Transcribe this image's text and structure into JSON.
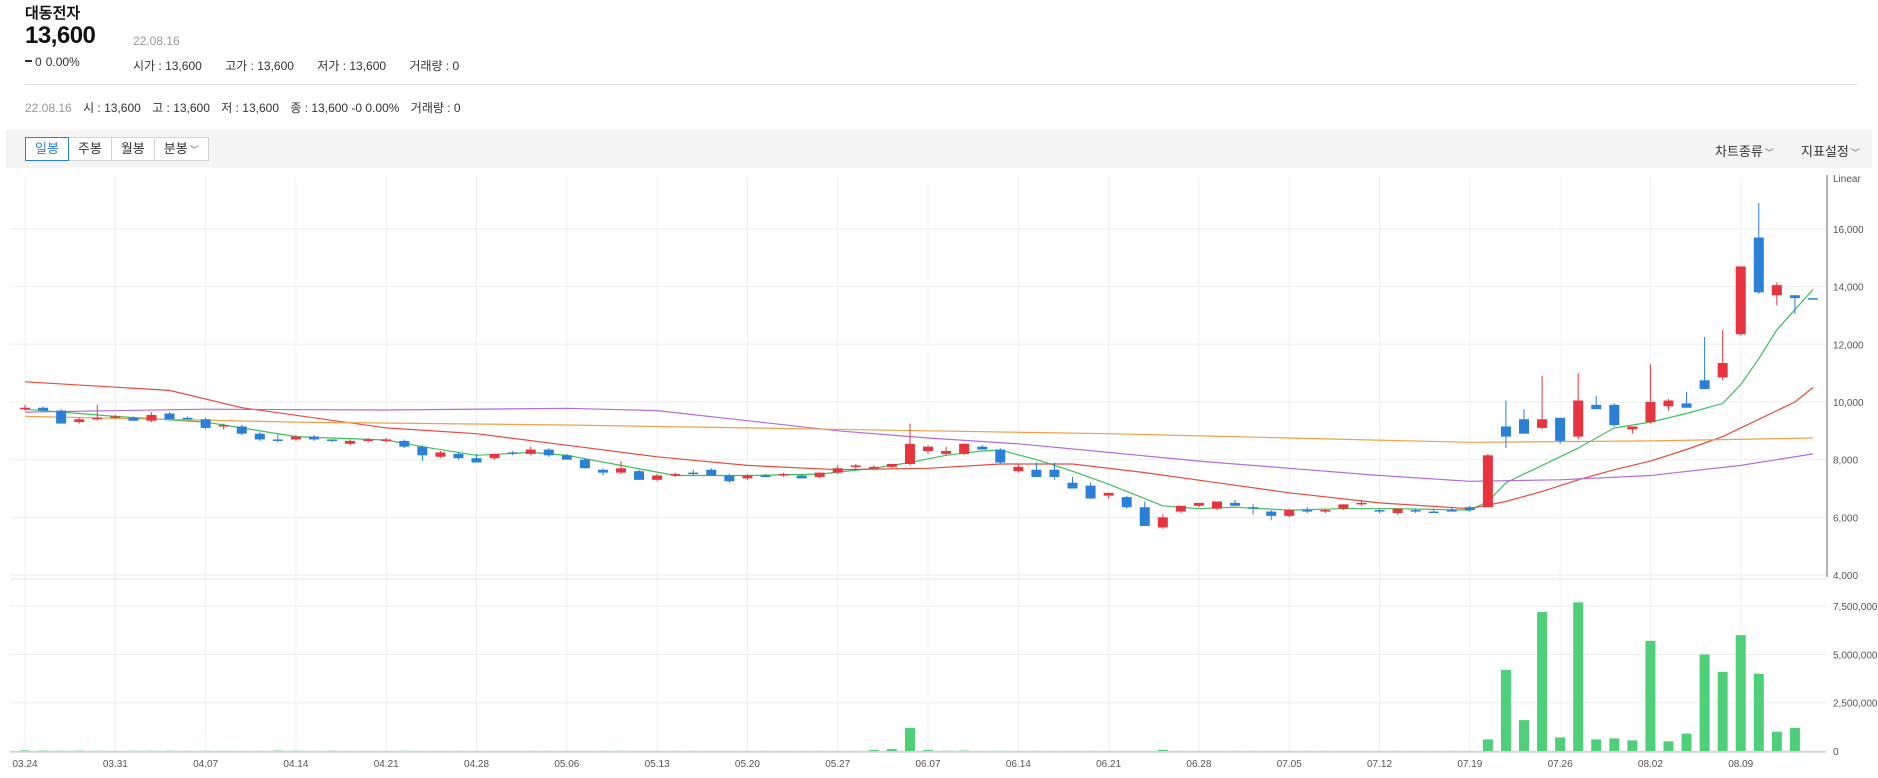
{
  "stock": {
    "name": "대동전자",
    "price": "13,600",
    "change": "0",
    "change_pct": "0.00%",
    "date": "22.08.16",
    "open": "시가 : 13,600",
    "high": "고가 : 13,600",
    "low": "저가 : 13,600",
    "volume": "거래량 : 0"
  },
  "info_bar": {
    "date": "22.08.16",
    "open": "시 : 13,600",
    "high": "고 : 13,600",
    "low": "저 : 13,600",
    "close": "종 : 13,600 -0 0.00%",
    "volume": "거래량 : 0"
  },
  "toolbar": {
    "tabs": [
      "일봉",
      "주봉",
      "월봉",
      "분봉"
    ],
    "active_tab": 0,
    "chart_type": "차트종류",
    "indicator": "지표설정"
  },
  "colors": {
    "up": "#e8343f",
    "down": "#2a7fd6",
    "volume": "#4fcf7a",
    "ma5": "#3dbf5a",
    "ma20": "#e84b3c",
    "ma60": "#b56ae0",
    "ma120": "#f0a04b"
  },
  "chart_data": {
    "type": "candlestick",
    "scale_label": "Linear",
    "price_axis": {
      "ticks": [
        "16,000",
        "14,000",
        "12,000",
        "10,000",
        "8,000",
        "6,000",
        "4,000"
      ],
      "values": [
        16000,
        14000,
        12000,
        10000,
        8000,
        6000,
        4000
      ],
      "range": [
        4000,
        17800
      ]
    },
    "volume_axis": {
      "ticks": [
        "7,500,000",
        "5,000,000",
        "2,500,000",
        "0"
      ],
      "values": [
        7500000,
        5000000,
        2500000,
        0
      ],
      "range": [
        0,
        8700000
      ]
    },
    "x_ticks": [
      {
        "label": "03.24",
        "i": 0
      },
      {
        "label": "03.31",
        "i": 5
      },
      {
        "label": "04.07",
        "i": 10
      },
      {
        "label": "04.14",
        "i": 15
      },
      {
        "label": "04.21",
        "i": 20
      },
      {
        "label": "04.28",
        "i": 25
      },
      {
        "label": "05.06",
        "i": 30
      },
      {
        "label": "05.13",
        "i": 35
      },
      {
        "label": "05.20",
        "i": 40
      },
      {
        "label": "05.27",
        "i": 45
      },
      {
        "label": "06.07",
        "i": 50
      },
      {
        "label": "06.14",
        "i": 55
      },
      {
        "label": "06.21",
        "i": 60
      },
      {
        "label": "06.28",
        "i": 65
      },
      {
        "label": "07.05",
        "i": 70
      },
      {
        "label": "07.12",
        "i": 75
      },
      {
        "label": "07.19",
        "i": 80
      },
      {
        "label": "07.26",
        "i": 85
      },
      {
        "label": "08.02",
        "i": 90
      },
      {
        "label": "08.09",
        "i": 95
      }
    ],
    "candles": [
      [
        9750,
        9900,
        9700,
        9800
      ],
      [
        9800,
        9850,
        9700,
        9700
      ],
      [
        9700,
        9750,
        9250,
        9250
      ],
      [
        9300,
        9450,
        9250,
        9400
      ],
      [
        9400,
        9900,
        9350,
        9450
      ],
      [
        9450,
        9550,
        9400,
        9500
      ],
      [
        9450,
        9500,
        9350,
        9350
      ],
      [
        9350,
        9650,
        9300,
        9550
      ],
      [
        9600,
        9650,
        9400,
        9400
      ],
      [
        9450,
        9500,
        9400,
        9400
      ],
      [
        9400,
        9450,
        9050,
        9100
      ],
      [
        9150,
        9250,
        9050,
        9200
      ],
      [
        9150,
        9200,
        8850,
        8900
      ],
      [
        8900,
        8950,
        8650,
        8700
      ],
      [
        8700,
        8900,
        8600,
        8700
      ],
      [
        8700,
        8850,
        8650,
        8800
      ],
      [
        8800,
        8850,
        8650,
        8700
      ],
      [
        8700,
        8700,
        8600,
        8650
      ],
      [
        8550,
        8700,
        8500,
        8650
      ],
      [
        8650,
        8750,
        8600,
        8700
      ],
      [
        8650,
        8750,
        8600,
        8700
      ],
      [
        8650,
        8700,
        8400,
        8450
      ],
      [
        8450,
        8500,
        7950,
        8150
      ],
      [
        8100,
        8300,
        8050,
        8250
      ],
      [
        8200,
        8250,
        8000,
        8050
      ],
      [
        8050,
        8200,
        7900,
        7900
      ],
      [
        8050,
        8200,
        8000,
        8200
      ],
      [
        8250,
        8300,
        8150,
        8200
      ],
      [
        8200,
        8450,
        8150,
        8350
      ],
      [
        8350,
        8400,
        8100,
        8150
      ],
      [
        8150,
        8200,
        8000,
        8000
      ],
      [
        8000,
        8050,
        7700,
        7700
      ],
      [
        7650,
        7700,
        7450,
        7550
      ],
      [
        7550,
        7950,
        7500,
        7700
      ],
      [
        7600,
        7650,
        7300,
        7300
      ],
      [
        7300,
        7500,
        7250,
        7450
      ],
      [
        7450,
        7550,
        7400,
        7500
      ],
      [
        7550,
        7650,
        7450,
        7500
      ],
      [
        7650,
        7700,
        7450,
        7450
      ],
      [
        7450,
        7500,
        7200,
        7250
      ],
      [
        7350,
        7500,
        7300,
        7450
      ],
      [
        7450,
        7500,
        7400,
        7450
      ],
      [
        7450,
        7550,
        7400,
        7500
      ],
      [
        7450,
        7500,
        7350,
        7350
      ],
      [
        7400,
        7550,
        7350,
        7550
      ],
      [
        7550,
        7800,
        7500,
        7700
      ],
      [
        7750,
        7850,
        7650,
        7800
      ],
      [
        7700,
        7800,
        7650,
        7750
      ],
      [
        7750,
        7850,
        7700,
        7850
      ],
      [
        7850,
        9250,
        7800,
        8550
      ],
      [
        8300,
        8500,
        8200,
        8450
      ],
      [
        8200,
        8450,
        8150,
        8300
      ],
      [
        8200,
        8550,
        8150,
        8550
      ],
      [
        8450,
        8500,
        8350,
        8350
      ],
      [
        8350,
        8400,
        7850,
        7900
      ],
      [
        7600,
        7850,
        7550,
        7750
      ],
      [
        7650,
        7900,
        7400,
        7400
      ],
      [
        7650,
        7900,
        7300,
        7400
      ],
      [
        7200,
        7400,
        7000,
        7000
      ],
      [
        7100,
        7200,
        6650,
        6650
      ],
      [
        6750,
        6850,
        6650,
        6850
      ],
      [
        6700,
        6750,
        6300,
        6350
      ],
      [
        6350,
        6550,
        5700,
        5700
      ],
      [
        5650,
        6100,
        5600,
        6000
      ],
      [
        6200,
        6400,
        6150,
        6400
      ],
      [
        6400,
        6500,
        6350,
        6500
      ],
      [
        6300,
        6550,
        6250,
        6550
      ],
      [
        6500,
        6600,
        6400,
        6400
      ],
      [
        6350,
        6450,
        6100,
        6300
      ],
      [
        6200,
        6250,
        5900,
        6050
      ],
      [
        6050,
        6300,
        6000,
        6250
      ],
      [
        6250,
        6350,
        6150,
        6200
      ],
      [
        6200,
        6300,
        6150,
        6250
      ],
      [
        6300,
        6450,
        6250,
        6450
      ],
      [
        6450,
        6600,
        6400,
        6500
      ],
      [
        6250,
        6300,
        6150,
        6200
      ],
      [
        6150,
        6300,
        6100,
        6300
      ],
      [
        6250,
        6300,
        6150,
        6200
      ],
      [
        6200,
        6300,
        6150,
        6200
      ],
      [
        6250,
        6350,
        6200,
        6250
      ],
      [
        6350,
        6400,
        6200,
        6250
      ],
      [
        6350,
        8200,
        6350,
        8150
      ],
      [
        9150,
        10050,
        8400,
        8800
      ],
      [
        9400,
        9750,
        8950,
        8900
      ],
      [
        9100,
        10900,
        9050,
        9400
      ],
      [
        9450,
        9450,
        8550,
        8650
      ],
      [
        8800,
        11000,
        8700,
        10050
      ],
      [
        9900,
        10200,
        9750,
        9750
      ],
      [
        9900,
        9950,
        9150,
        9200
      ],
      [
        9050,
        9150,
        8900,
        9150
      ],
      [
        9300,
        11300,
        9250,
        10000
      ],
      [
        9850,
        10100,
        9700,
        10050
      ],
      [
        9950,
        10350,
        9800,
        9800
      ],
      [
        10750,
        12250,
        10550,
        10450
      ],
      [
        10850,
        12500,
        10750,
        11350
      ],
      [
        12350,
        14700,
        12300,
        14700
      ],
      [
        15700,
        16900,
        13750,
        13800
      ],
      [
        13700,
        14150,
        13350,
        14050
      ],
      [
        13700,
        13700,
        13050,
        13600
      ],
      [
        13600,
        13600,
        13600,
        13600
      ]
    ],
    "volumes": [
      30000,
      20000,
      10000,
      15000,
      10000,
      5000,
      8000,
      10000,
      12000,
      5000,
      8000,
      10000,
      5000,
      5000,
      20000,
      10000,
      5000,
      10000,
      5000,
      5000,
      5000,
      8000,
      5000,
      5000,
      5000,
      5000,
      5000,
      5000,
      5000,
      5000,
      5000,
      5000,
      5000,
      8000,
      5000,
      5000,
      5000,
      5000,
      5000,
      5000,
      5000,
      5000,
      5000,
      5000,
      5000,
      5000,
      5000,
      50000,
      100000,
      1200000,
      50000,
      10000,
      20000,
      5000,
      8000,
      5000,
      5000,
      5000,
      5000,
      5000,
      5000,
      5000,
      5000,
      60000,
      5000,
      5000,
      5000,
      5000,
      5000,
      5000,
      5000,
      5000,
      5000,
      5000,
      5000,
      5000,
      5000,
      5000,
      5000,
      5000,
      5000,
      600000,
      4200000,
      1600000,
      7200000,
      700000,
      7700000,
      600000,
      650000,
      550000,
      5700000,
      500000,
      900000,
      5000000,
      4100000,
      6000000,
      4000000,
      1000000,
      1200000,
      0
    ],
    "ma": [
      {
        "name": "ma5",
        "color_key": "ma5",
        "points": [
          [
            0,
            9750
          ],
          [
            5,
            9500
          ],
          [
            10,
            9300
          ],
          [
            15,
            8800
          ],
          [
            20,
            8680
          ],
          [
            22,
            8450
          ],
          [
            25,
            8150
          ],
          [
            28,
            8250
          ],
          [
            30,
            8150
          ],
          [
            33,
            7800
          ],
          [
            36,
            7450
          ],
          [
            40,
            7450
          ],
          [
            44,
            7500
          ],
          [
            47,
            7700
          ],
          [
            49,
            7900
          ],
          [
            51,
            8150
          ],
          [
            53,
            8300
          ],
          [
            54,
            8330
          ],
          [
            56,
            8000
          ],
          [
            58,
            7600
          ],
          [
            60,
            7150
          ],
          [
            62,
            6650
          ],
          [
            63,
            6400
          ],
          [
            65,
            6300
          ],
          [
            67,
            6350
          ],
          [
            70,
            6250
          ],
          [
            73,
            6300
          ],
          [
            76,
            6300
          ],
          [
            80,
            6250
          ],
          [
            81,
            6550
          ],
          [
            82,
            7200
          ],
          [
            84,
            7800
          ],
          [
            86,
            8400
          ],
          [
            88,
            9100
          ],
          [
            90,
            9300
          ],
          [
            92,
            9600
          ],
          [
            94,
            9950
          ],
          [
            95,
            10600
          ],
          [
            96,
            11500
          ],
          [
            97,
            12500
          ],
          [
            98,
            13200
          ],
          [
            99,
            13900
          ]
        ]
      },
      {
        "name": "ma20",
        "color_key": "ma20",
        "points": [
          [
            0,
            10700
          ],
          [
            8,
            10400
          ],
          [
            12,
            9800
          ],
          [
            20,
            9100
          ],
          [
            25,
            8900
          ],
          [
            30,
            8500
          ],
          [
            35,
            8100
          ],
          [
            40,
            7800
          ],
          [
            45,
            7650
          ],
          [
            50,
            7700
          ],
          [
            54,
            7850
          ],
          [
            58,
            7850
          ],
          [
            62,
            7550
          ],
          [
            66,
            7200
          ],
          [
            70,
            6850
          ],
          [
            75,
            6500
          ],
          [
            80,
            6300
          ],
          [
            82,
            6550
          ],
          [
            84,
            6900
          ],
          [
            86,
            7300
          ],
          [
            88,
            7650
          ],
          [
            90,
            7950
          ],
          [
            92,
            8350
          ],
          [
            94,
            8800
          ],
          [
            96,
            9400
          ],
          [
            98,
            10000
          ],
          [
            99,
            10500
          ]
        ]
      },
      {
        "name": "ma60",
        "color_key": "ma60",
        "points": [
          [
            0,
            9650
          ],
          [
            10,
            9750
          ],
          [
            20,
            9720
          ],
          [
            30,
            9780
          ],
          [
            35,
            9700
          ],
          [
            40,
            9350
          ],
          [
            45,
            9000
          ],
          [
            50,
            8750
          ],
          [
            55,
            8550
          ],
          [
            60,
            8250
          ],
          [
            65,
            7950
          ],
          [
            70,
            7700
          ],
          [
            75,
            7450
          ],
          [
            80,
            7250
          ],
          [
            85,
            7300
          ],
          [
            90,
            7450
          ],
          [
            95,
            7800
          ],
          [
            99,
            8200
          ]
        ]
      },
      {
        "name": "ma120",
        "color_key": "ma120",
        "points": [
          [
            0,
            9500
          ],
          [
            15,
            9300
          ],
          [
            30,
            9200
          ],
          [
            35,
            9150
          ],
          [
            40,
            9100
          ],
          [
            50,
            9000
          ],
          [
            60,
            8900
          ],
          [
            70,
            8750
          ],
          [
            80,
            8600
          ],
          [
            90,
            8650
          ],
          [
            99,
            8750
          ]
        ]
      }
    ]
  }
}
